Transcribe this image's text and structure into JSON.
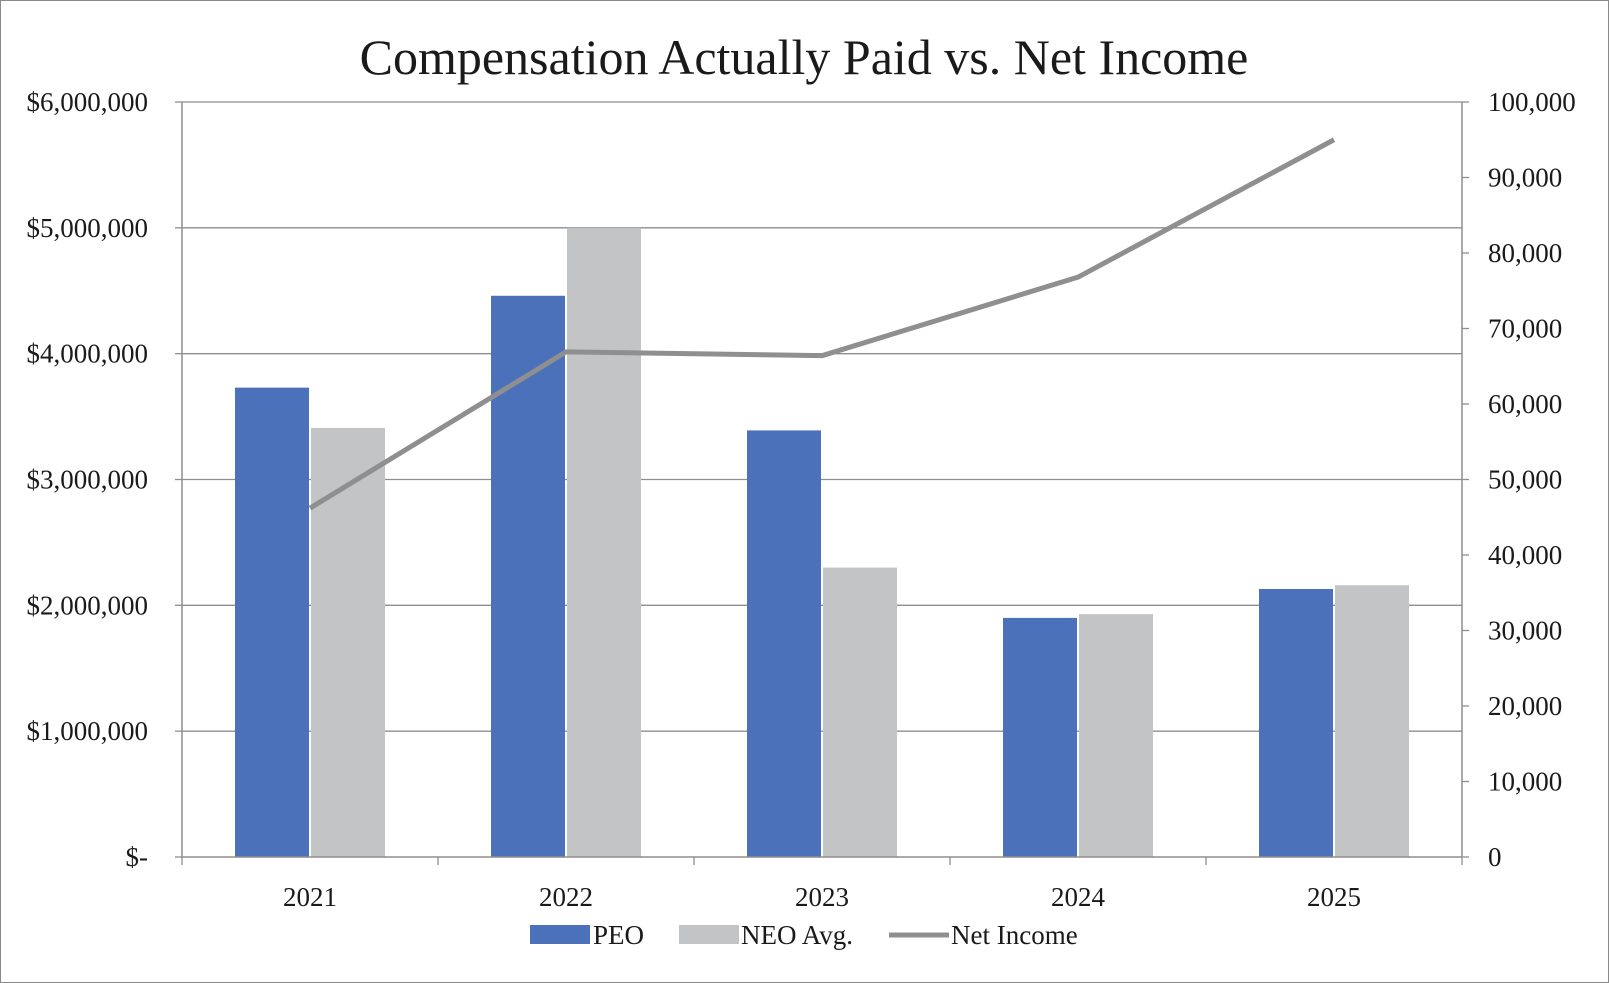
{
  "chart_data": {
    "type": "bar",
    "title": "Compensation Actually Paid vs. Net Income",
    "categories": [
      "2021",
      "2022",
      "2023",
      "2024",
      "2025"
    ],
    "series": [
      {
        "name": "PEO",
        "type": "bar",
        "axis": "left",
        "color": "#4a71b9",
        "values": [
          3730000,
          4460000,
          3390000,
          1900000,
          2130000
        ]
      },
      {
        "name": "NEO Avg.",
        "type": "bar",
        "axis": "left",
        "color": "#c3c4c6",
        "values": [
          3410000,
          5000000,
          2300000,
          1930000,
          2160000
        ]
      },
      {
        "name": "Net Income",
        "type": "line",
        "axis": "right",
        "color": "#8f8f8f",
        "values": [
          46200,
          66900,
          66400,
          76800,
          95000
        ]
      }
    ],
    "y_left": {
      "range": [
        0,
        6000000
      ],
      "tick_values": [
        0,
        1000000,
        2000000,
        3000000,
        4000000,
        5000000,
        6000000
      ],
      "tick_labels": [
        "$-",
        "$1,000,000",
        "$2,000,000",
        "$3,000,000",
        "$4,000,000",
        "$5,000,000",
        "$6,000,000"
      ]
    },
    "y_right": {
      "range": [
        0,
        100000
      ],
      "tick_values": [
        0,
        10000,
        20000,
        30000,
        40000,
        50000,
        60000,
        70000,
        80000,
        90000,
        100000
      ],
      "tick_labels": [
        "0",
        "10,000",
        "20,000",
        "30,000",
        "40,000",
        "50,000",
        "60,000",
        "70,000",
        "80,000",
        "90,000",
        "100,000"
      ]
    },
    "grid": true,
    "legend_position": "bottom-center"
  }
}
